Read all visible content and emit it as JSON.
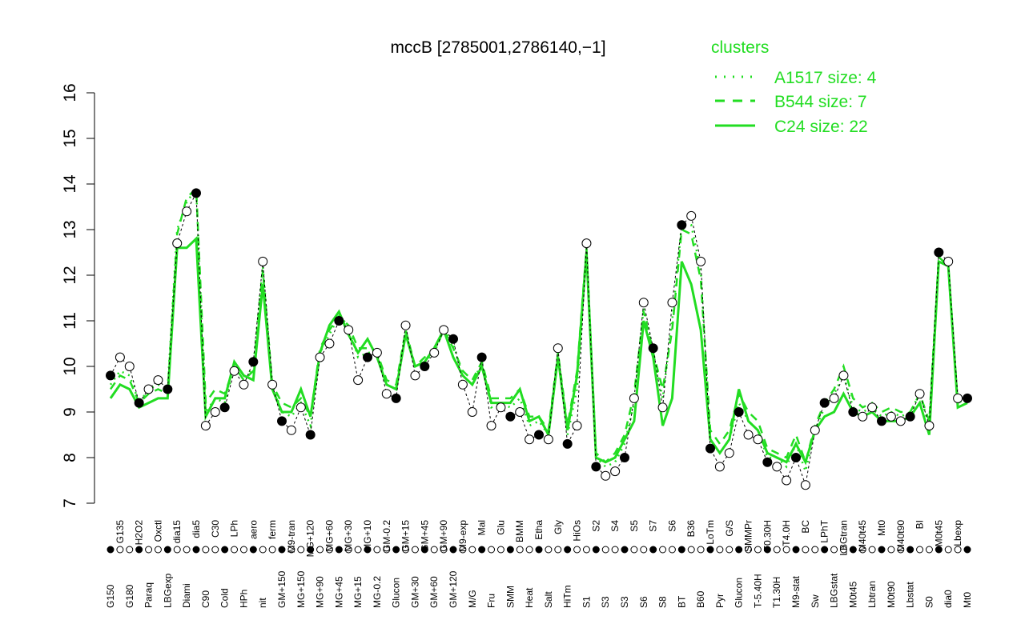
{
  "chart_data": {
    "type": "line",
    "title": "mccB [2785001,2786140,−1]",
    "xlabel": "",
    "ylabel": "",
    "ylim": [
      7,
      16
    ],
    "yticks": [
      7,
      8,
      9,
      10,
      11,
      12,
      13,
      14,
      15,
      16
    ],
    "legend": {
      "title": "clusters",
      "placement": "top-right",
      "entries": [
        {
          "name": "A1517 size: 4",
          "style": "dotted"
        },
        {
          "name": "B544 size: 7",
          "style": "dashed"
        },
        {
          "name": "C24 size: 22",
          "style": "solid"
        }
      ]
    },
    "color": "#22dd22",
    "categories": [
      "G150",
      "G135",
      "G180",
      "H2O2",
      "Paraq",
      "Oxctl",
      "LBGexp",
      "dia15",
      "Diami",
      "dia5",
      "C90",
      "C30",
      "Cold",
      "LPh",
      "HPh",
      "aero",
      "nit",
      "ferm",
      "GM+150",
      "M9-tran",
      "MG+150",
      "MG+120",
      "MG+90",
      "MG+60",
      "MG+45",
      "MG+30",
      "MG+15",
      "MG+10",
      "MG-0.2",
      "GM-0.2",
      "Glucon",
      "GM+15",
      "GM+30",
      "GM+45",
      "GM+60",
      "GM+90",
      "GM+120",
      "M9-exp",
      "M/G",
      "Mal",
      "Fru",
      "Glu",
      "SMM",
      "BMM",
      "Heat",
      "Etha",
      "Salt",
      "Gly",
      "HiTm",
      "HiOs",
      "S1",
      "S2",
      "S3",
      "S4",
      "S3",
      "S5",
      "S6",
      "S7",
      "S8",
      "S6",
      "BT",
      "B36",
      "B60",
      "LoTm",
      "Pyr",
      "G/S",
      "Glucon",
      "SMMPr",
      "T-5.40H",
      "T0.30H",
      "T1.30H",
      "T4.0H",
      "M9-stat",
      "BC",
      "Sw",
      "LPhT",
      "LBGstat",
      "LBGtran",
      "M0t45",
      "M40t45",
      "Lbtran",
      "Mt0",
      "M0t90",
      "M40t90",
      "Lbstat",
      "BI",
      "S0",
      "M0t45",
      "dia0",
      "Lbexp",
      "Mt0"
    ],
    "points": [
      9.8,
      10.2,
      10.0,
      9.2,
      9.5,
      9.7,
      9.5,
      12.7,
      13.4,
      13.8,
      8.7,
      9.0,
      9.1,
      9.9,
      9.6,
      10.1,
      12.3,
      9.6,
      8.8,
      8.6,
      9.1,
      8.5,
      10.2,
      10.5,
      11.0,
      10.8,
      9.7,
      10.2,
      10.3,
      9.4,
      9.3,
      10.9,
      9.8,
      10.0,
      10.3,
      10.8,
      10.6,
      9.6,
      9.0,
      10.2,
      8.7,
      9.1,
      8.9,
      9.0,
      8.4,
      8.5,
      8.4,
      10.4,
      8.3,
      8.7,
      12.7,
      7.8,
      7.6,
      7.7,
      8.0,
      9.3,
      11.4,
      10.4,
      9.1,
      11.4,
      13.1,
      13.3,
      12.3,
      8.2,
      7.8,
      8.1,
      9.0,
      8.5,
      8.4,
      7.9,
      7.8,
      7.5,
      8.0,
      7.4,
      8.6,
      9.2,
      9.3,
      9.8,
      9.0,
      8.9,
      9.1,
      8.8,
      8.9,
      8.8,
      8.9,
      9.4,
      8.7,
      12.5,
      12.3,
      9.3,
      9.3
    ],
    "series": [
      {
        "name": "C24",
        "values": [
          9.3,
          9.6,
          9.5,
          9.1,
          9.2,
          9.3,
          9.3,
          12.6,
          12.6,
          12.8,
          8.9,
          9.3,
          9.3,
          10.1,
          9.8,
          9.7,
          11.8,
          9.5,
          9.0,
          9.0,
          9.5,
          8.9,
          10.3,
          10.9,
          11.2,
          10.7,
          10.3,
          10.6,
          10.2,
          9.6,
          9.5,
          10.7,
          10.0,
          10.1,
          10.4,
          10.8,
          10.2,
          9.8,
          9.6,
          10.0,
          9.2,
          9.2,
          9.2,
          9.5,
          8.8,
          8.9,
          8.5,
          10.2,
          8.6,
          9.8,
          12.5,
          8.0,
          7.9,
          8.0,
          8.4,
          8.8,
          11.0,
          10.2,
          8.7,
          9.3,
          12.3,
          11.8,
          10.8,
          8.4,
          8.1,
          8.4,
          9.5,
          8.8,
          8.6,
          8.1,
          8.0,
          7.9,
          8.3,
          7.9,
          8.6,
          8.9,
          9.0,
          9.4,
          9.0,
          8.9,
          9.0,
          8.8,
          8.8,
          8.8,
          8.9,
          9.2,
          8.5,
          12.3,
          12.2,
          9.1,
          9.2
        ]
      },
      {
        "name": "B544",
        "values": [
          9.5,
          9.8,
          9.7,
          9.2,
          9.4,
          9.5,
          9.4,
          12.9,
          13.7,
          13.9,
          9.2,
          9.5,
          9.4,
          10.0,
          9.7,
          9.9,
          12.1,
          9.6,
          9.2,
          9.1,
          9.3,
          8.9,
          10.4,
          10.8,
          11.1,
          10.9,
          10.4,
          10.4,
          10.3,
          9.7,
          9.6,
          10.8,
          10.0,
          10.2,
          10.3,
          10.8,
          10.4,
          9.9,
          9.7,
          10.1,
          9.3,
          9.3,
          9.3,
          9.5,
          8.9,
          8.9,
          8.6,
          10.3,
          8.7,
          9.9,
          12.6,
          8.1,
          7.9,
          8.1,
          8.5,
          9.4,
          11.2,
          10.3,
          9.5,
          10.8,
          13.0,
          12.9,
          11.9,
          8.6,
          8.3,
          8.6,
          9.4,
          9.0,
          8.8,
          8.2,
          8.1,
          8.0,
          8.5,
          7.9,
          8.7,
          9.2,
          9.5,
          10.0,
          9.3,
          9.1,
          9.2,
          9.0,
          9.1,
          9.0,
          9.0,
          9.4,
          8.8,
          12.4,
          12.2,
          9.2,
          9.3
        ]
      },
      {
        "name": "A1517",
        "values": [
          9.6,
          9.9,
          9.8,
          9.2,
          9.5,
          9.6,
          9.5,
          13.0,
          13.6,
          13.9,
          9.0,
          9.3,
          9.2,
          10.0,
          9.7,
          10.0,
          12.2,
          9.6,
          9.0,
          8.9,
          9.2,
          8.7,
          10.3,
          10.7,
          11.1,
          10.9,
          10.2,
          10.3,
          10.3,
          9.6,
          9.5,
          10.8,
          10.0,
          10.1,
          10.3,
          10.8,
          10.5,
          9.8,
          9.6,
          10.1,
          9.1,
          9.2,
          9.1,
          9.3,
          8.7,
          8.8,
          8.5,
          10.3,
          8.5,
          9.5,
          12.6,
          8.0,
          7.8,
          7.9,
          8.3,
          9.2,
          11.3,
          10.3,
          9.3,
          11.0,
          13.1,
          13.1,
          12.1,
          8.4,
          8.1,
          8.4,
          9.2,
          8.8,
          8.6,
          8.0,
          8.0,
          7.8,
          8.3,
          7.7,
          8.6,
          9.1,
          9.4,
          9.8,
          9.1,
          9.0,
          9.1,
          8.9,
          9.0,
          8.9,
          9.0,
          9.4,
          8.7,
          12.4,
          12.2,
          9.2,
          9.3
        ]
      }
    ]
  }
}
